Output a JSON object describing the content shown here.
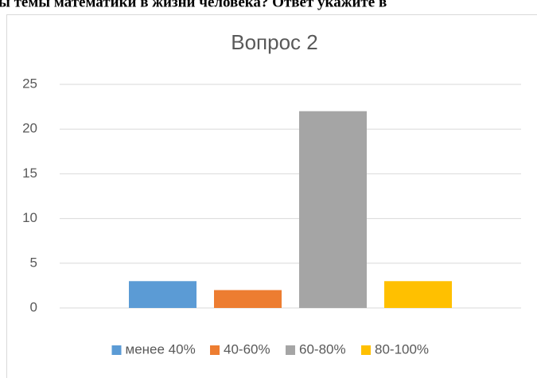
{
  "header_text": "ы темы математики в жизни человека? Ответ укажите в",
  "chart_data": {
    "type": "bar",
    "title": "Вопрос 2",
    "categories": [
      null
    ],
    "series": [
      {
        "name": "менее 40%",
        "color": "#5b9bd5",
        "values": [
          3
        ]
      },
      {
        "name": "40-60%",
        "color": "#ed7d31",
        "values": [
          2
        ]
      },
      {
        "name": "60-80%",
        "color": "#a5a5a5",
        "values": [
          22
        ]
      },
      {
        "name": "80-100%",
        "color": "#ffc000",
        "values": [
          3
        ]
      }
    ],
    "ylim": [
      0,
      25
    ],
    "yticks": [
      0,
      5,
      10,
      15,
      20,
      25
    ],
    "grid": true,
    "legend": "bottom"
  }
}
